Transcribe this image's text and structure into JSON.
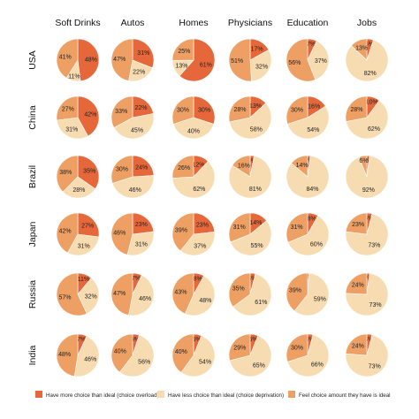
{
  "chart_data": {
    "type": "pie",
    "columns": [
      "Soft Drinks",
      "Autos",
      "Homes",
      "Physicians",
      "Education",
      "Jobs"
    ],
    "rows": [
      "USA",
      "China",
      "Brazil",
      "Japan",
      "Russia",
      "India"
    ],
    "series": [
      {
        "name": "Have more choice than ideal (choice overload)",
        "color": "#e5673a"
      },
      {
        "name": "Have less choice than ideal (choice deprivation)",
        "color": "#f7dcb1"
      },
      {
        "name": "Feel choice amount they have is ideal",
        "color": "#eea064"
      }
    ],
    "values": [
      [
        [
          48,
          11,
          41
        ],
        [
          31,
          22,
          47
        ],
        [
          61,
          13,
          25
        ],
        [
          17,
          32,
          51
        ],
        [
          7,
          37,
          56
        ],
        [
          5,
          82,
          13
        ]
      ],
      [
        [
          42,
          31,
          27
        ],
        [
          22,
          45,
          33
        ],
        [
          30,
          40,
          30
        ],
        [
          13,
          58,
          28
        ],
        [
          16,
          54,
          30
        ],
        [
          10,
          62,
          28
        ]
      ],
      [
        [
          35,
          28,
          38
        ],
        [
          24,
          46,
          30
        ],
        [
          12,
          62,
          26
        ],
        [
          3,
          81,
          16
        ],
        [
          2,
          84,
          14
        ],
        [
          2,
          92,
          6
        ]
      ],
      [
        [
          27,
          31,
          42
        ],
        [
          23,
          31,
          46
        ],
        [
          23,
          37,
          39
        ],
        [
          14,
          55,
          31
        ],
        [
          8,
          60,
          31
        ],
        [
          4,
          73,
          23
        ]
      ],
      [
        [
          11,
          32,
          57
        ],
        [
          7,
          46,
          47
        ],
        [
          8,
          48,
          43
        ],
        [
          4,
          61,
          35
        ],
        [
          1,
          59,
          39
        ],
        [
          2,
          73,
          24
        ]
      ],
      [
        [
          7,
          46,
          48
        ],
        [
          5,
          56,
          40
        ],
        [
          6,
          54,
          40
        ],
        [
          6,
          65,
          29
        ],
        [
          4,
          66,
          30
        ],
        [
          4,
          73,
          24
        ]
      ]
    ]
  }
}
